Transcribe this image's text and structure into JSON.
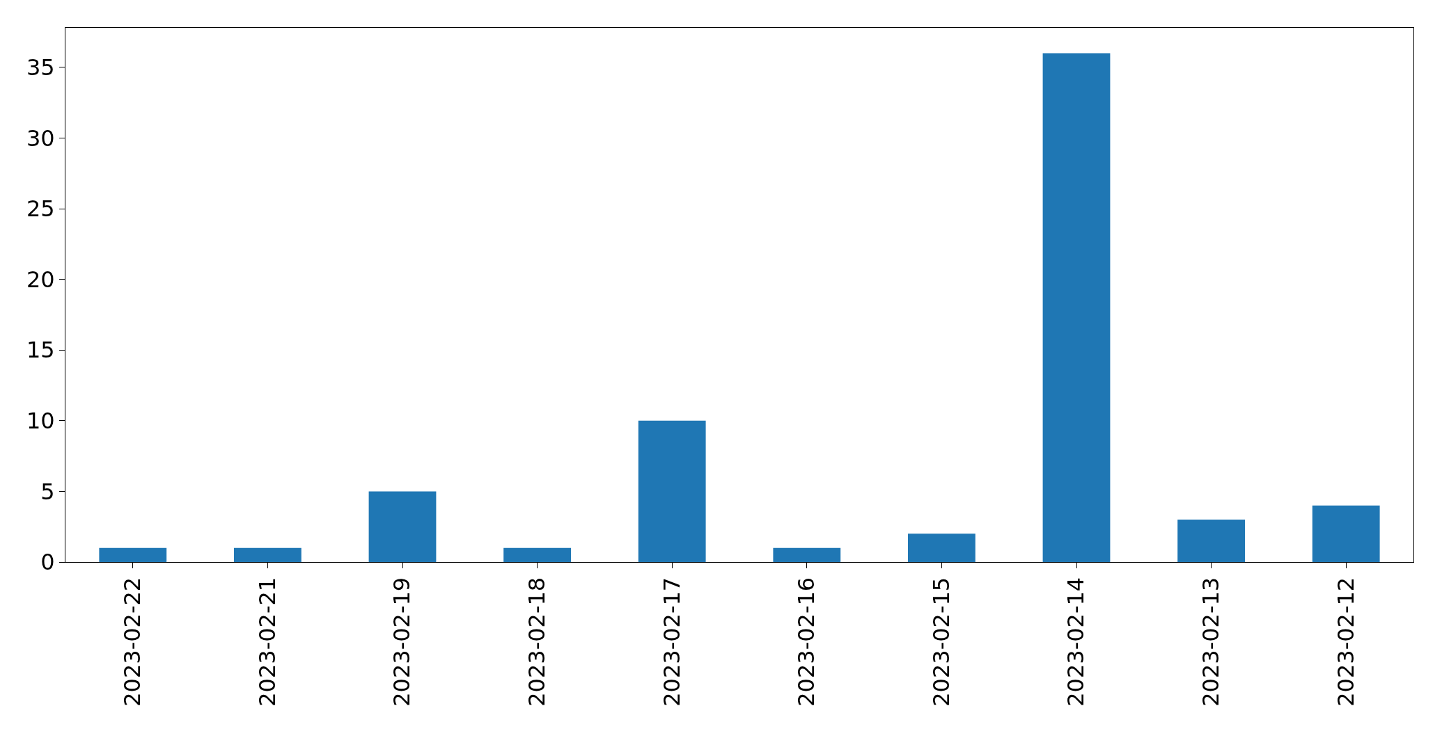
{
  "chart_data": {
    "type": "bar",
    "categories": [
      "2023-02-22",
      "2023-02-21",
      "2023-02-19",
      "2023-02-18",
      "2023-02-17",
      "2023-02-16",
      "2023-02-15",
      "2023-02-14",
      "2023-02-13",
      "2023-02-12"
    ],
    "values": [
      1,
      1,
      5,
      1,
      10,
      1,
      2,
      36,
      3,
      4
    ],
    "color": "#1f77b4",
    "ylim": [
      0,
      37.8
    ],
    "yticks": [
      0,
      5,
      10,
      15,
      20,
      25,
      30,
      35
    ]
  }
}
